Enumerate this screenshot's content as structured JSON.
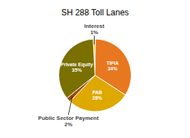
{
  "chart_data": {
    "type": "pie",
    "title": "SH 288 Toll Lanes",
    "categories": [
      "Interest",
      "TIFIA",
      "PAB",
      "Public Sector Payment",
      "Private Equity"
    ],
    "values": [
      1,
      34,
      28,
      2,
      35
    ],
    "value_labels": [
      "1%",
      "34%",
      "28%",
      "2%",
      "35%"
    ],
    "colors": [
      "#F5C200",
      "#E87820",
      "#DDA800",
      "#9B4A10",
      "#7A7000"
    ],
    "data_labels": true
  }
}
